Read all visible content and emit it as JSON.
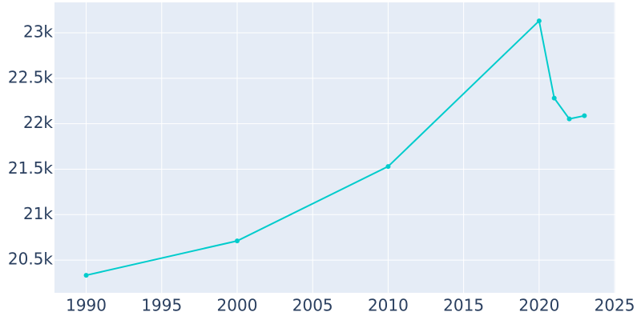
{
  "chart_data": {
    "type": "line",
    "x": [
      1990,
      2000,
      2010,
      2020,
      2021,
      2022,
      2023
    ],
    "series": [
      {
        "color": "#00cccc",
        "values": [
          20333,
          20711,
          21530,
          23132,
          22282,
          22053,
          22088
        ]
      }
    ],
    "xlim": [
      1987.9,
      2025.05
    ],
    "xticks": [
      1990,
      1995,
      2000,
      2005,
      2010,
      2015,
      2020,
      2025
    ],
    "ylim": [
      20140,
      23335
    ],
    "yticks": [
      {
        "value": 20500,
        "label": "20.5k"
      },
      {
        "value": 21000,
        "label": "21k"
      },
      {
        "value": 21500,
        "label": "21.5k"
      },
      {
        "value": 22000,
        "label": "22k"
      },
      {
        "value": 22500,
        "label": "22.5k"
      },
      {
        "value": 23000,
        "label": "23k"
      }
    ],
    "grid": true
  }
}
